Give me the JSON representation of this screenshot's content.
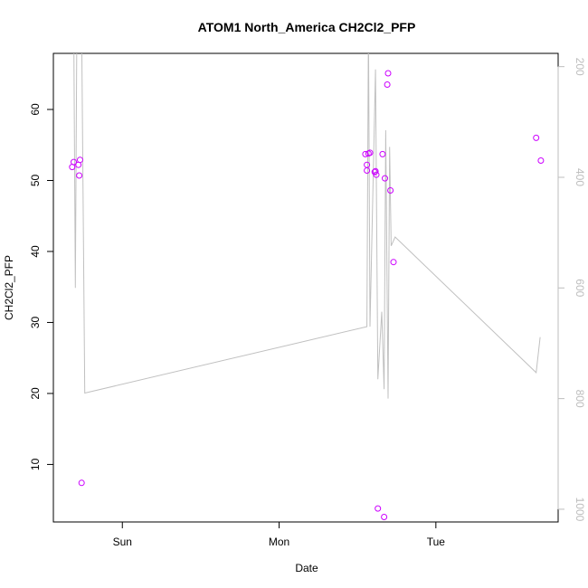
{
  "chart_data": {
    "type": "scatter",
    "title": "ATOM1 North_America CH2Cl2_PFP",
    "xlabel": "Date",
    "ylabel": "CH2Cl2_PFP",
    "x_ticks": [
      "Sun",
      "Mon",
      "Tue"
    ],
    "x_tick_positions": [
      1,
      2,
      3
    ],
    "xlim": [
      0.56,
      3.78
    ],
    "ylim": [
      1.9,
      67.9
    ],
    "y_ticks": [
      10,
      20,
      30,
      40,
      50,
      60
    ],
    "y2_ticks": [
      200,
      400,
      600,
      800,
      1000
    ],
    "y2lim": [
      1023,
      176
    ],
    "grid": false,
    "point_color": "#cc00ff",
    "line_color": "#c0c0c0",
    "points": [
      {
        "x": 0.68,
        "y": 51.9
      },
      {
        "x": 0.69,
        "y": 52.6
      },
      {
        "x": 0.72,
        "y": 52.2
      },
      {
        "x": 0.725,
        "y": 50.7
      },
      {
        "x": 0.73,
        "y": 52.9
      },
      {
        "x": 0.74,
        "y": 7.4
      },
      {
        "x": 2.55,
        "y": 53.7
      },
      {
        "x": 2.56,
        "y": 52.2
      },
      {
        "x": 2.56,
        "y": 51.4
      },
      {
        "x": 2.57,
        "y": 53.8
      },
      {
        "x": 2.58,
        "y": 53.9
      },
      {
        "x": 2.61,
        "y": 51.2
      },
      {
        "x": 2.615,
        "y": 51.3
      },
      {
        "x": 2.62,
        "y": 50.8
      },
      {
        "x": 2.63,
        "y": 3.8
      },
      {
        "x": 2.66,
        "y": 53.7
      },
      {
        "x": 2.67,
        "y": 2.6
      },
      {
        "x": 2.675,
        "y": 50.3
      },
      {
        "x": 2.69,
        "y": 63.5
      },
      {
        "x": 2.695,
        "y": 65.1
      },
      {
        "x": 2.71,
        "y": 48.6
      },
      {
        "x": 2.73,
        "y": 38.5
      },
      {
        "x": 3.64,
        "y": 56.0
      },
      {
        "x": 3.67,
        "y": 52.8
      }
    ],
    "secondary_series": {
      "axis": "right",
      "points": [
        {
          "x": 0.69,
          "y": 120
        },
        {
          "x": 0.7,
          "y": 600
        },
        {
          "x": 0.71,
          "y": 120
        },
        {
          "x": 0.74,
          "y": 120
        },
        {
          "x": 0.76,
          "y": 790
        },
        {
          "x": 2.56,
          "y": 670
        },
        {
          "x": 2.57,
          "y": 120
        },
        {
          "x": 2.58,
          "y": 670
        },
        {
          "x": 2.615,
          "y": 205
        },
        {
          "x": 2.63,
          "y": 765
        },
        {
          "x": 2.655,
          "y": 643
        },
        {
          "x": 2.67,
          "y": 783
        },
        {
          "x": 2.68,
          "y": 315
        },
        {
          "x": 2.695,
          "y": 800
        },
        {
          "x": 2.705,
          "y": 345
        },
        {
          "x": 2.715,
          "y": 524
        },
        {
          "x": 2.74,
          "y": 508
        },
        {
          "x": 3.64,
          "y": 753
        },
        {
          "x": 3.665,
          "y": 689
        }
      ]
    }
  }
}
